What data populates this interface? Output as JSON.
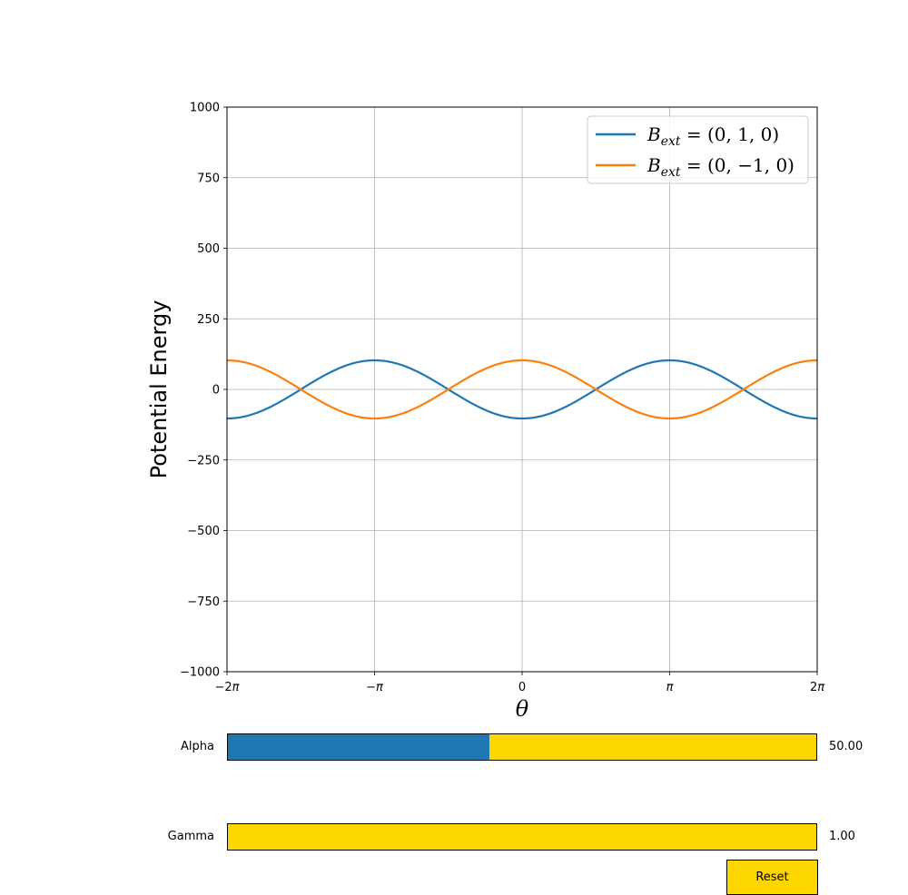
{
  "chart_data": {
    "type": "line",
    "xlabel": "θ",
    "ylabel": "Potential Energy",
    "xlim": [
      -6.283185,
      6.283185
    ],
    "ylim": [
      -1000,
      1000
    ],
    "x_ticks": [
      {
        "value": -6.283185,
        "base": "−2",
        "sym": "π"
      },
      {
        "value": -3.141593,
        "base": "−",
        "sym": "π"
      },
      {
        "value": 0,
        "base": "0",
        "sym": ""
      },
      {
        "value": 3.141593,
        "base": "",
        "sym": "π"
      },
      {
        "value": 6.283185,
        "base": "2",
        "sym": "π"
      }
    ],
    "y_ticks": [
      {
        "value": 1000,
        "label": "1000"
      },
      {
        "value": 750,
        "label": "750"
      },
      {
        "value": 500,
        "label": "500"
      },
      {
        "value": 250,
        "label": "250"
      },
      {
        "value": 0,
        "label": "0"
      },
      {
        "value": -250,
        "label": "−250"
      },
      {
        "value": -500,
        "label": "−500"
      },
      {
        "value": -750,
        "label": "−750"
      },
      {
        "value": -1000,
        "label": "−1000"
      }
    ],
    "grid": true,
    "legend_position": "top-right",
    "series": [
      {
        "name": "B_ext = (0, 1, 0)",
        "sub_label": "ext",
        "value_label": "(0, 1, 0)",
        "color": "#1f77b4",
        "function": "y = -a*cos(x)",
        "amplitude": 103
      },
      {
        "name": "B_ext = (0, −1, 0)",
        "sub_label": "ext",
        "value_label": "(0, −1, 0)",
        "color": "#ff7f0e",
        "function": "y = a*cos(x)",
        "amplitude": 103
      }
    ]
  },
  "controls": {
    "alpha": {
      "label": "Alpha",
      "value_text": "50.00",
      "fill_fraction": 0.444
    },
    "gamma": {
      "label": "Gamma",
      "value_text": "1.00",
      "fill_fraction": 0.0
    },
    "reset_label": "Reset"
  }
}
